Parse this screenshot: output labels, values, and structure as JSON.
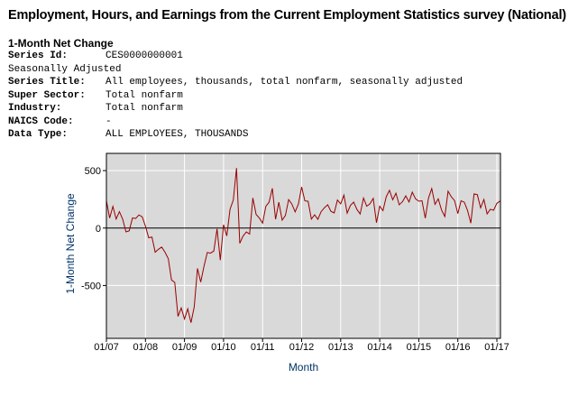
{
  "page": {
    "title": "Employment, Hours, and Earnings from the Current Employment Statistics survey (National)",
    "heading": "1-Month Net Change",
    "fields": [
      {
        "label": "Series Id:",
        "value": "CES0000000001"
      },
      {
        "label": "",
        "value": "Seasonally Adjusted"
      },
      {
        "label": "Series Title:",
        "value": "All employees, thousands, total nonfarm, seasonally adjusted"
      },
      {
        "label": "Super Sector:",
        "value": "Total nonfarm"
      },
      {
        "label": "Industry:",
        "value": "Total nonfarm"
      },
      {
        "label": "NAICS Code:",
        "value": "-"
      },
      {
        "label": "Data Type:",
        "value": "ALL EMPLOYEES, THOUSANDS"
      }
    ]
  },
  "colors": {
    "line": "#990000",
    "plot_bg": "#d9d9d9",
    "grid": "#ffffff",
    "axis_label": "#003366"
  },
  "chart_data": {
    "type": "line",
    "title": "",
    "xlabel": "Month",
    "ylabel": "1-Month Net Change",
    "ylim": [
      -960,
      650
    ],
    "yticks": [
      500,
      0,
      -500
    ],
    "ytick_labels": [
      "500",
      "0",
      "-500"
    ],
    "xticks": [
      "01/07",
      "01/08",
      "01/09",
      "01/10",
      "01/11",
      "01/12",
      "01/13",
      "01/14",
      "01/15",
      "01/16",
      "01/17"
    ],
    "x_start": "2007-01",
    "grid": true,
    "series": [
      {
        "name": "1-Month Net Change",
        "values": [
          238,
          88,
          188,
          79,
          143,
          78,
          -33,
          -24,
          88,
          84,
          114,
          98,
          17,
          -84,
          -78,
          -210,
          -185,
          -165,
          -209,
          -266,
          -452,
          -473,
          -769,
          -695,
          -791,
          -703,
          -823,
          -686,
          -351,
          -470,
          -329,
          -212,
          -219,
          -200,
          -7,
          -279,
          28,
          -69,
          163,
          243,
          522,
          -133,
          -70,
          -34,
          -52,
          262,
          119,
          87,
          43,
          189,
          225,
          346,
          77,
          225,
          69,
          110,
          248,
          209,
          141,
          209,
          358,
          237,
          233,
          78,
          115,
          76,
          143,
          177,
          203,
          146,
          132,
          244,
          211,
          286,
          130,
          197,
          226,
          162,
          122,
          261,
          190,
          212,
          258,
          47,
          190,
          151,
          272,
          329,
          246,
          304,
          202,
          230,
          280,
          227,
          312,
          255,
          234,
          238,
          86,
          262,
          344,
          206,
          254,
          157,
          100,
          321,
          272,
          239,
          126,
          237,
          225,
          153,
          43,
          297,
          291,
          176,
          249,
          124,
          164,
          155,
          216,
          235
        ]
      }
    ]
  }
}
